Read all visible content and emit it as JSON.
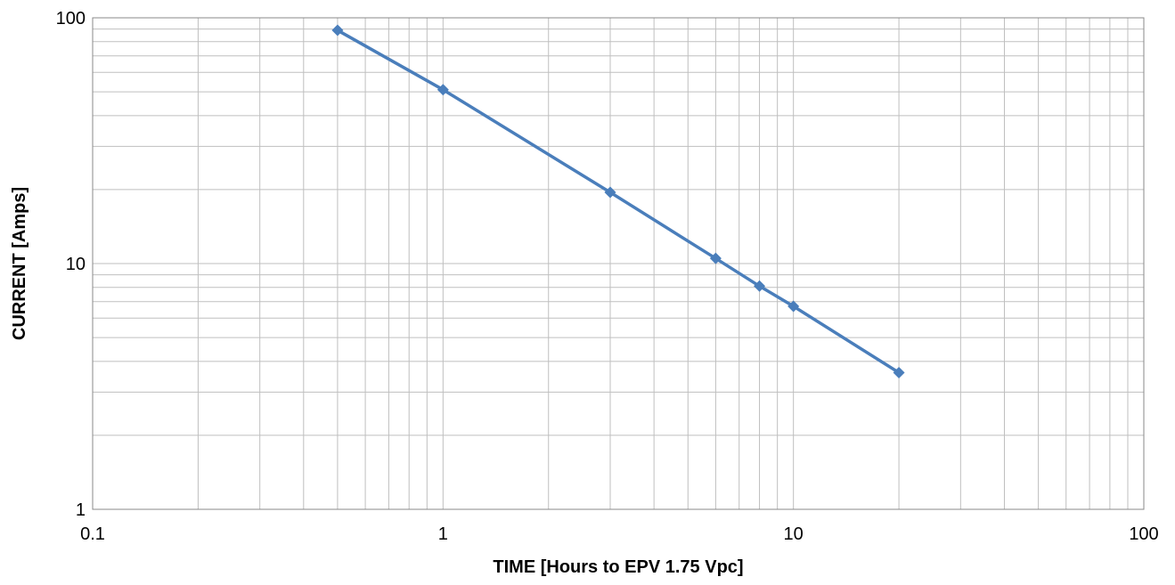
{
  "chart_data": {
    "type": "line",
    "title": "",
    "xlabel": "TIME [Hours to EPV 1.75 Vpc]",
    "ylabel": "CURRENT [Amps]",
    "xscale": "log",
    "yscale": "log",
    "xlim": [
      0.1,
      100
    ],
    "ylim": [
      1,
      100
    ],
    "grid": true,
    "legend": "none",
    "x_tick_labels": [
      "0.1",
      "1",
      "10",
      "100"
    ],
    "y_tick_labels": [
      "1",
      "10",
      "100"
    ],
    "series": [
      {
        "x": [
          0.5,
          1,
          3,
          6,
          8,
          10,
          20
        ],
        "y": [
          89,
          51,
          19.5,
          10.5,
          8.1,
          6.7,
          3.6
        ],
        "color": "#4a7ebb",
        "marker": "diamond"
      }
    ]
  }
}
